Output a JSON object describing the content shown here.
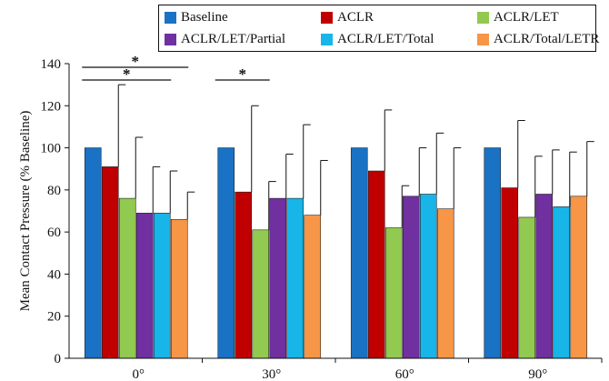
{
  "chart_data": {
    "type": "bar",
    "ylabel": "Mean Contact  Pressure (% Baseline)",
    "xlabel": "",
    "ylim": [
      0,
      140
    ],
    "yticks": [
      0,
      20,
      40,
      60,
      80,
      100,
      120,
      140
    ],
    "categories": [
      "0°",
      "30°",
      "60°",
      "90°"
    ],
    "error_bars": "upper",
    "series": [
      {
        "name": "Baseline",
        "color": "#1a72c4",
        "values": [
          100,
          100,
          100,
          100
        ],
        "errors": [
          0,
          0,
          0,
          0
        ]
      },
      {
        "name": "ACLR",
        "color": "#c00000",
        "values": [
          91,
          79,
          89,
          81
        ],
        "errors": [
          39,
          41,
          29,
          32
        ]
      },
      {
        "name": "ACLR/LET",
        "color": "#92c950",
        "values": [
          76,
          61,
          62,
          67
        ],
        "errors": [
          29,
          23,
          20,
          29
        ]
      },
      {
        "name": "ACLR/LET/Partial",
        "color": "#7030a0",
        "values": [
          69,
          76,
          77,
          78
        ],
        "errors": [
          22,
          21,
          23,
          21
        ]
      },
      {
        "name": "ACLR/LET/Total",
        "color": "#17b5e8",
        "values": [
          69,
          76,
          78,
          72
        ],
        "errors": [
          20,
          35,
          29,
          26
        ]
      },
      {
        "name": "ACLR/Total/LETR",
        "color": "#f79646",
        "values": [
          66,
          68,
          71,
          77
        ],
        "errors": [
          13,
          26,
          29,
          26
        ]
      }
    ],
    "significance": [
      {
        "category": "0°",
        "from": "Baseline",
        "to": "ACLR/LET/Total",
        "label": "*"
      },
      {
        "category": "0°",
        "from": "Baseline",
        "to": "ACLR/Total/LETR",
        "label": "*"
      },
      {
        "category": "30°",
        "from": "Baseline",
        "to": "ACLR/LET",
        "label": "*"
      }
    ],
    "legend_placement": "top"
  }
}
